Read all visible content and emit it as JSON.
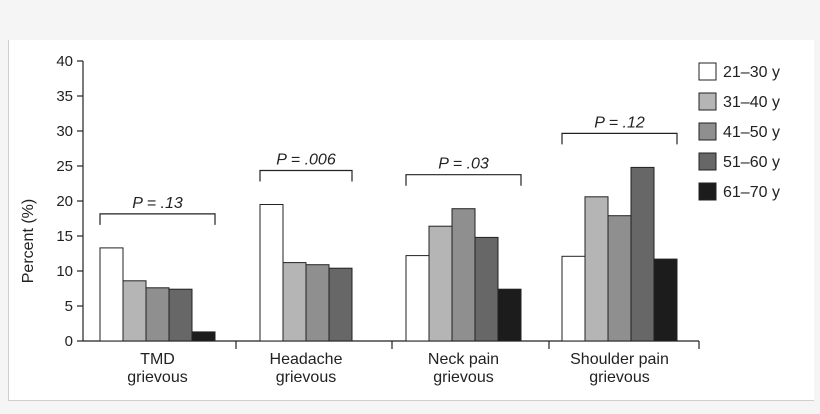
{
  "chart_data": {
    "type": "bar",
    "ylabel": "Percent (%)",
    "ylim": [
      0,
      40
    ],
    "yticks": [
      0,
      5,
      10,
      15,
      20,
      25,
      30,
      35,
      40
    ],
    "categories": [
      [
        "TMD",
        "grievous"
      ],
      [
        "Headache",
        "grievous"
      ],
      [
        "Neck pain",
        "grievous"
      ],
      [
        "Shoulder pain",
        "grievous"
      ]
    ],
    "series": [
      {
        "name": "21–30 y",
        "color": "#ffffff",
        "values": [
          13.3,
          19.5,
          12.2,
          12.1
        ]
      },
      {
        "name": "31–40 y",
        "color": "#b5b5b5",
        "values": [
          8.6,
          11.2,
          16.4,
          20.6
        ]
      },
      {
        "name": "41–50 y",
        "color": "#8f8f8f",
        "values": [
          7.6,
          10.9,
          18.9,
          17.9
        ]
      },
      {
        "name": "51–60 y",
        "color": "#676767",
        "values": [
          7.4,
          10.4,
          14.8,
          24.8
        ]
      },
      {
        "name": "61–70 y",
        "color": "#1c1c1c",
        "values": [
          1.3,
          null,
          7.4,
          11.7
        ]
      }
    ],
    "annotations": [
      {
        "text": "P = .13",
        "category": 0
      },
      {
        "text": "P = .006",
        "category": 1
      },
      {
        "text": "P = .03",
        "category": 2
      },
      {
        "text": "P = .12",
        "category": 3
      }
    ],
    "legend": "right",
    "grid": false
  }
}
